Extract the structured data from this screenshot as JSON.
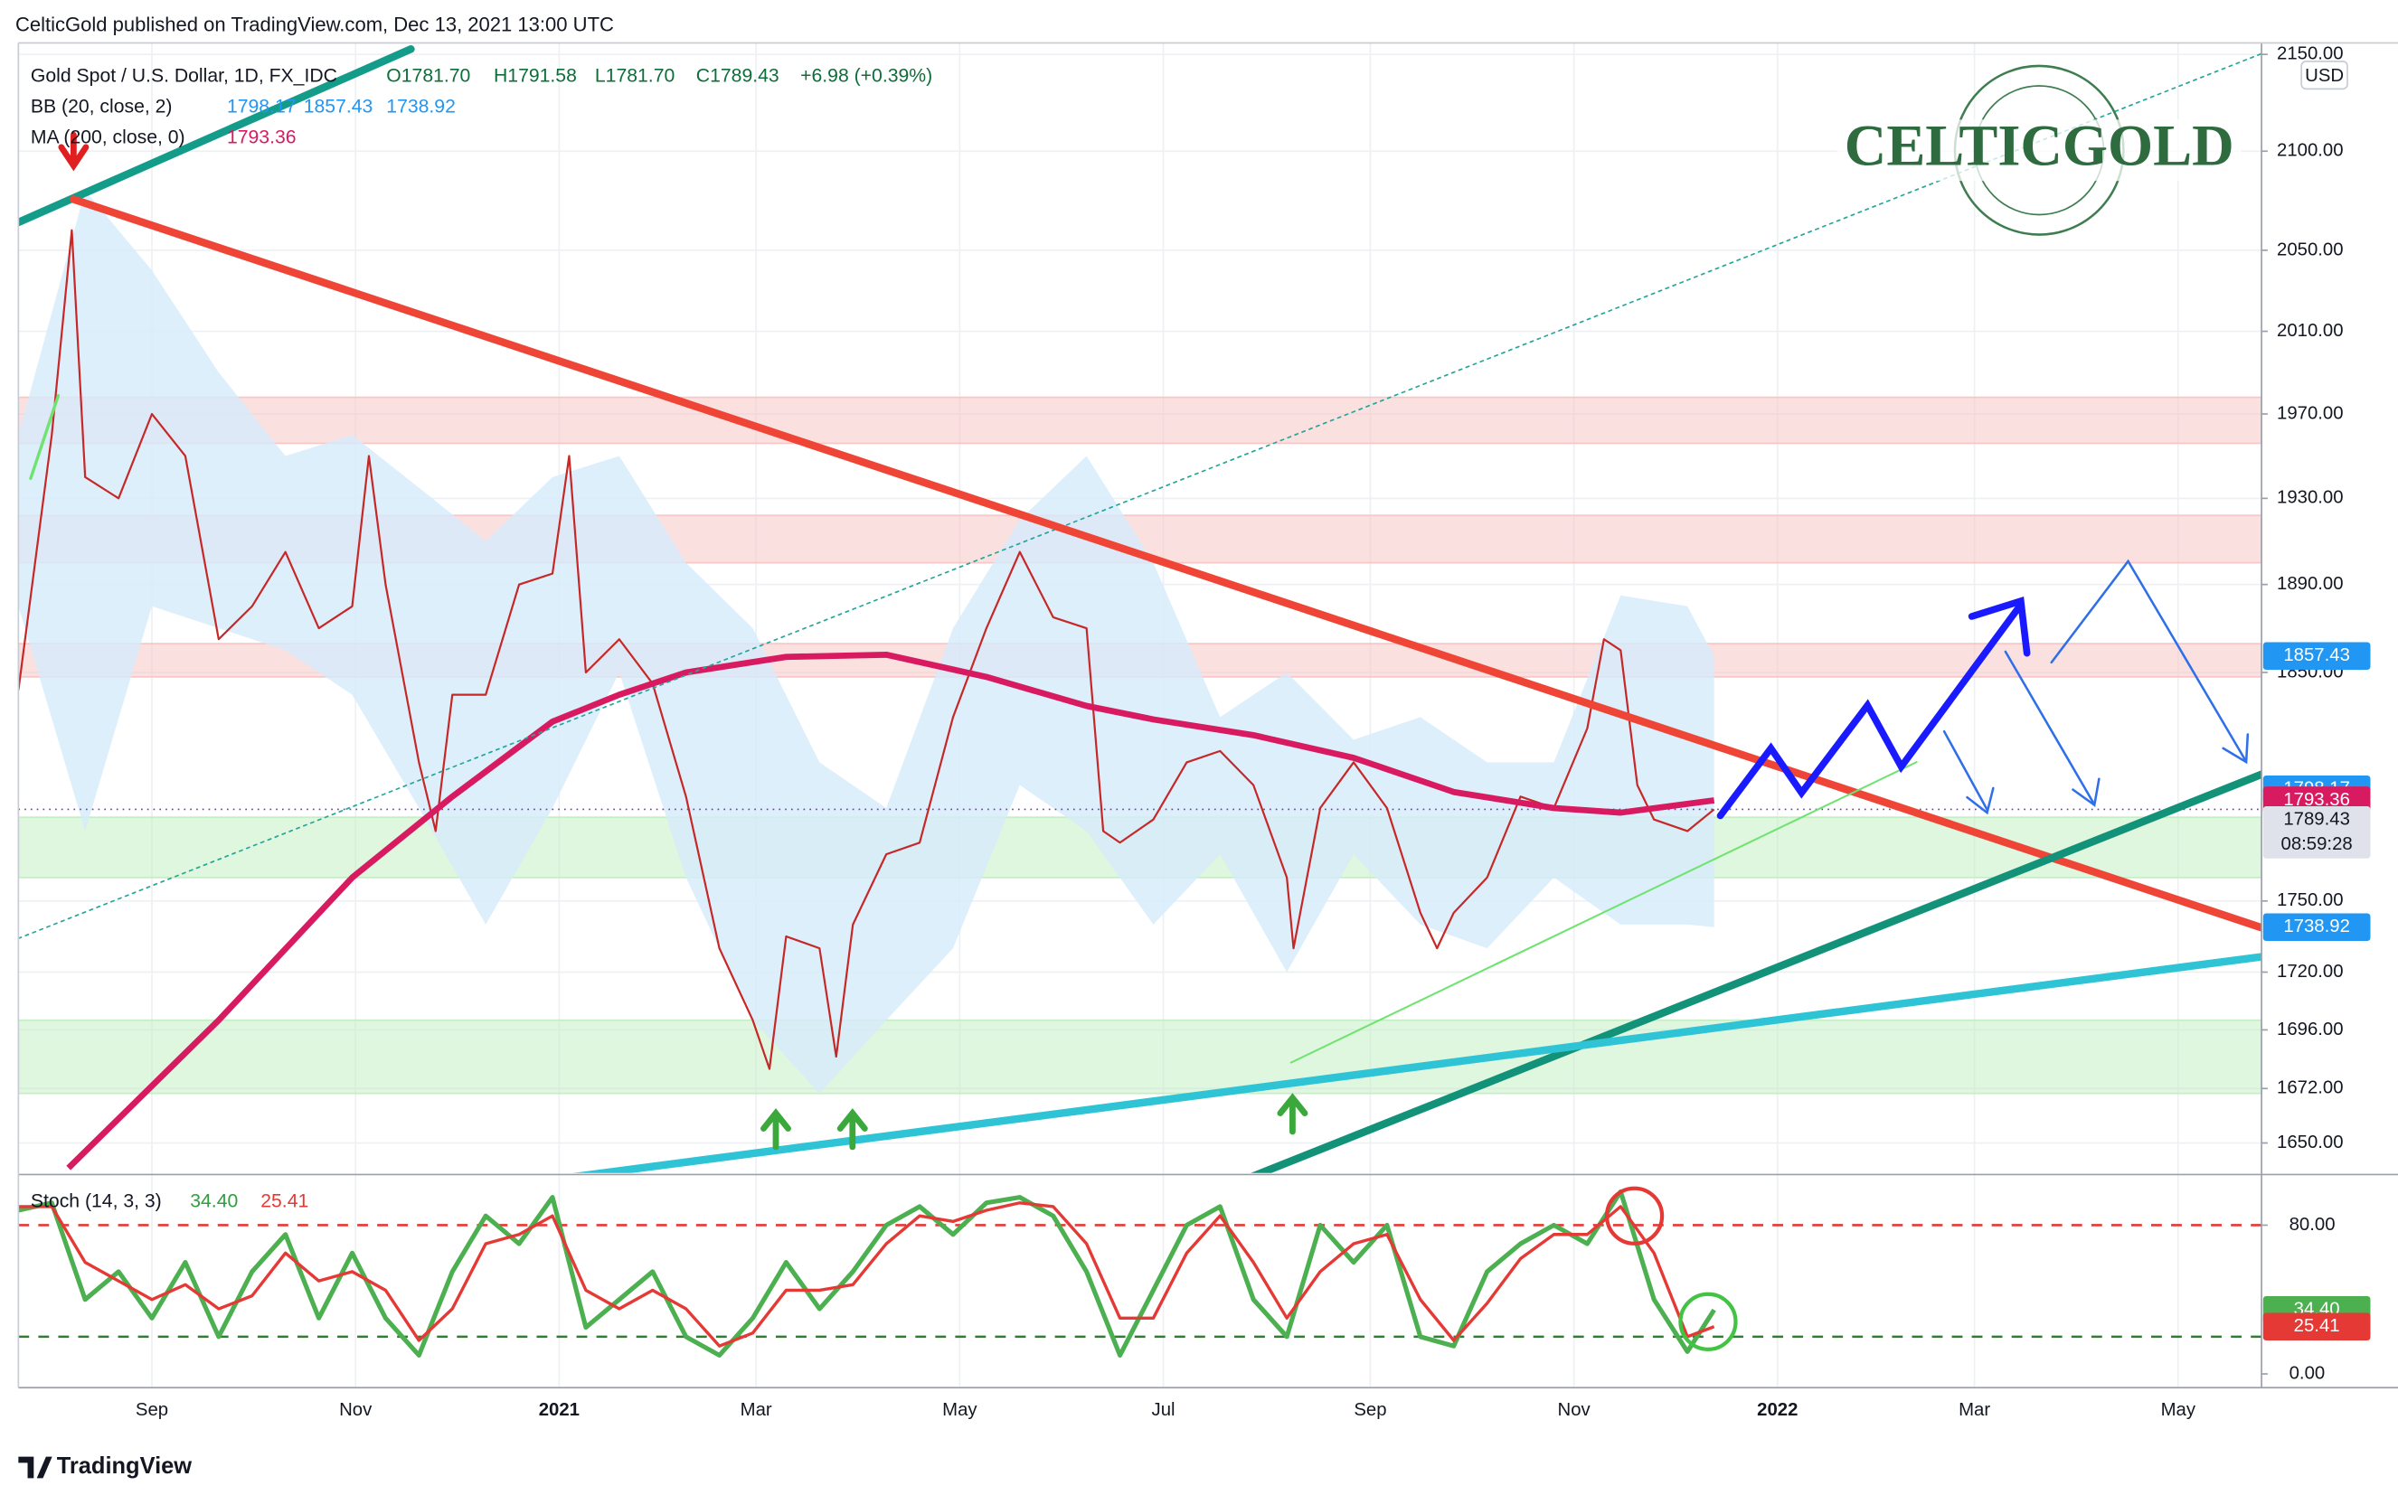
{
  "header": {
    "text": "CelticGold published on TradingView.com, Dec 13, 2021 13:00 UTC"
  },
  "logo": {
    "text": "CELTICGOLD"
  },
  "footer": {
    "brand": "TradingView"
  },
  "chart_data": [
    {
      "type": "line",
      "title": "Gold Spot / U.S. Dollar, 1D, FX_IDC",
      "ohlc_labels": [
        "O1781.70",
        "H1791.58",
        "L1781.70",
        "C1789.43",
        "+6.98 (+0.39%)"
      ],
      "axis_unit": "USD",
      "countdown": "08:59:28",
      "log": true,
      "grid": true,
      "xlim": [
        0,
        672
      ],
      "ylim": [
        1638,
        2156
      ],
      "yticks": [
        {
          "value": 2150,
          "label": "2150.00"
        },
        {
          "value": 2100,
          "label": "2100.00"
        },
        {
          "value": 2050,
          "label": "2050.00"
        },
        {
          "value": 2010,
          "label": "2010.00"
        },
        {
          "value": 1970,
          "label": "1970.00"
        },
        {
          "value": 1930,
          "label": "1930.00"
        },
        {
          "value": 1890,
          "label": "1890.00"
        },
        {
          "value": 1850,
          "label": "1850.00"
        },
        {
          "value": 1750,
          "label": "1750.00"
        },
        {
          "value": 1720,
          "label": "1720.00"
        },
        {
          "value": 1696,
          "label": "1696.00"
        },
        {
          "value": 1672,
          "label": "1672.00"
        },
        {
          "value": 1650,
          "label": "1650.00"
        }
      ],
      "zones": [
        {
          "from": 1956,
          "to": 1978,
          "color": "#f7c6c6"
        },
        {
          "from": 1900,
          "to": 1922,
          "color": "#f7c6c6"
        },
        {
          "from": 1848,
          "to": 1863,
          "color": "#f7c6c6"
        },
        {
          "from": 1760,
          "to": 1786,
          "color": "#c4eec4"
        },
        {
          "from": 1670,
          "to": 1700,
          "color": "#c4eec4"
        }
      ],
      "series": [
        {
          "name": "Gold Spot / U.S. Dollar, 1D, FX_IDC",
          "color": "#c62828",
          "x": [
            0,
            10,
            16,
            20,
            30,
            40,
            50,
            60,
            70,
            80,
            90,
            100,
            105,
            110,
            120,
            125,
            130,
            140,
            150,
            160,
            165,
            170,
            180,
            190,
            200,
            210,
            220,
            225,
            230,
            240,
            245,
            250,
            260,
            270,
            280,
            290,
            300,
            310,
            320,
            325,
            330,
            340,
            350,
            360,
            370,
            380,
            382,
            390,
            400,
            410,
            420,
            425,
            430,
            440,
            450,
            460,
            470,
            475,
            480,
            485,
            490,
            500,
            508
          ],
          "values": [
            1842,
            1960,
            2060,
            1940,
            1930,
            1970,
            1950,
            1865,
            1880,
            1905,
            1870,
            1880,
            1950,
            1890,
            1810,
            1780,
            1840,
            1840,
            1890,
            1895,
            1950,
            1850,
            1865,
            1845,
            1795,
            1730,
            1700,
            1680,
            1735,
            1730,
            1685,
            1740,
            1770,
            1775,
            1830,
            1870,
            1905,
            1875,
            1870,
            1780,
            1775,
            1785,
            1810,
            1815,
            1800,
            1760,
            1730,
            1790,
            1810,
            1790,
            1745,
            1730,
            1745,
            1760,
            1795,
            1790,
            1825,
            1865,
            1860,
            1800,
            1785,
            1780,
            1789.43
          ]
        },
        {
          "name": "MA (200, close, 0)",
          "color": "#d81b60",
          "x": [
            15,
            60,
            100,
            130,
            160,
            180,
            200,
            230,
            260,
            290,
            320,
            340,
            370,
            400,
            430,
            460,
            480,
            508
          ],
          "values": [
            1640,
            1700,
            1760,
            1795,
            1828,
            1840,
            1850,
            1857,
            1858,
            1848,
            1835,
            1829,
            1822,
            1812,
            1797,
            1790,
            1788,
            1793.36
          ]
        }
      ],
      "bb": {
        "name": "BB (20, close, 2)",
        "color": "#2196f3",
        "fill": "#d6ebfb",
        "x": [
          0,
          20,
          40,
          60,
          80,
          100,
          120,
          140,
          160,
          180,
          200,
          220,
          240,
          260,
          280,
          300,
          320,
          340,
          360,
          380,
          400,
          420,
          440,
          460,
          480,
          500,
          508
        ],
        "upper": [
          1960,
          2080,
          2040,
          1990,
          1950,
          1960,
          1935,
          1910,
          1940,
          1950,
          1900,
          1870,
          1810,
          1790,
          1870,
          1920,
          1950,
          1900,
          1830,
          1850,
          1820,
          1830,
          1810,
          1810,
          1885,
          1880,
          1857.43
        ],
        "lower": [
          1880,
          1780,
          1880,
          1870,
          1860,
          1840,
          1790,
          1740,
          1790,
          1850,
          1760,
          1700,
          1670,
          1700,
          1730,
          1800,
          1780,
          1740,
          1770,
          1720,
          1770,
          1740,
          1730,
          1760,
          1740,
          1740,
          1738.92
        ],
        "last": [
          1798.17,
          1857.43,
          1738.92
        ]
      },
      "price_tag_color": "#dfe2ea"
    },
    {
      "type": "line",
      "title": "Stoch (14, 3, 3)",
      "xlim": [
        0,
        672
      ],
      "ylim": [
        -7.4,
        106.4
      ],
      "yticks": [
        {
          "value": 80,
          "label": "80.00"
        },
        {
          "value": 0,
          "label": "0.00"
        }
      ],
      "levels": [
        {
          "value": 80,
          "color": "#e53935"
        },
        {
          "value": 20,
          "color": "#2e7d32"
        }
      ],
      "xticks": [
        {
          "value": 40,
          "label": "Sep"
        },
        {
          "value": 101,
          "label": "Nov"
        },
        {
          "value": 162,
          "label": "2021"
        },
        {
          "value": 221,
          "label": "Mar"
        },
        {
          "value": 282,
          "label": "May"
        },
        {
          "value": 343,
          "label": "Jul"
        },
        {
          "value": 405,
          "label": "Sep"
        },
        {
          "value": 466,
          "label": "Nov"
        },
        {
          "value": 527,
          "label": "2022"
        },
        {
          "value": 586,
          "label": "Mar"
        },
        {
          "value": 647,
          "label": "May"
        }
      ],
      "series": [
        {
          "color": "#4caf50",
          "x": [
            0,
            10,
            20,
            30,
            40,
            50,
            60,
            70,
            80,
            90,
            100,
            110,
            120,
            130,
            140,
            150,
            160,
            170,
            180,
            190,
            200,
            210,
            220,
            230,
            240,
            250,
            260,
            270,
            280,
            290,
            300,
            310,
            320,
            330,
            340,
            350,
            360,
            370,
            380,
            390,
            400,
            410,
            420,
            430,
            440,
            450,
            460,
            470,
            480,
            490,
            500,
            508
          ],
          "values": [
            88,
            92,
            40,
            55,
            30,
            60,
            20,
            55,
            75,
            30,
            65,
            30,
            10,
            55,
            85,
            70,
            95,
            25,
            40,
            55,
            20,
            10,
            30,
            60,
            35,
            55,
            80,
            90,
            75,
            92,
            95,
            85,
            55,
            10,
            45,
            80,
            90,
            40,
            20,
            80,
            60,
            80,
            20,
            15,
            55,
            70,
            80,
            70,
            98,
            40,
            12,
            34.4
          ],
          "last": {
            "value": 34.4,
            "label": "34.40"
          }
        },
        {
          "color": "#e53935",
          "x": [
            0,
            10,
            20,
            30,
            40,
            50,
            60,
            70,
            80,
            90,
            100,
            110,
            120,
            130,
            140,
            150,
            160,
            170,
            180,
            190,
            200,
            210,
            220,
            230,
            240,
            250,
            260,
            270,
            280,
            290,
            300,
            310,
            320,
            330,
            340,
            350,
            360,
            370,
            380,
            390,
            400,
            410,
            420,
            430,
            440,
            450,
            460,
            470,
            480,
            490,
            500,
            508
          ],
          "values": [
            90,
            90,
            60,
            50,
            40,
            48,
            35,
            42,
            65,
            50,
            55,
            45,
            18,
            35,
            70,
            75,
            85,
            45,
            35,
            45,
            35,
            15,
            22,
            45,
            45,
            48,
            70,
            85,
            82,
            88,
            92,
            90,
            70,
            30,
            30,
            65,
            85,
            60,
            30,
            55,
            70,
            75,
            40,
            18,
            38,
            62,
            75,
            75,
            90,
            65,
            20,
            25.41
          ],
          "last": {
            "value": 25.41,
            "label": "25.41"
          }
        }
      ]
    }
  ]
}
